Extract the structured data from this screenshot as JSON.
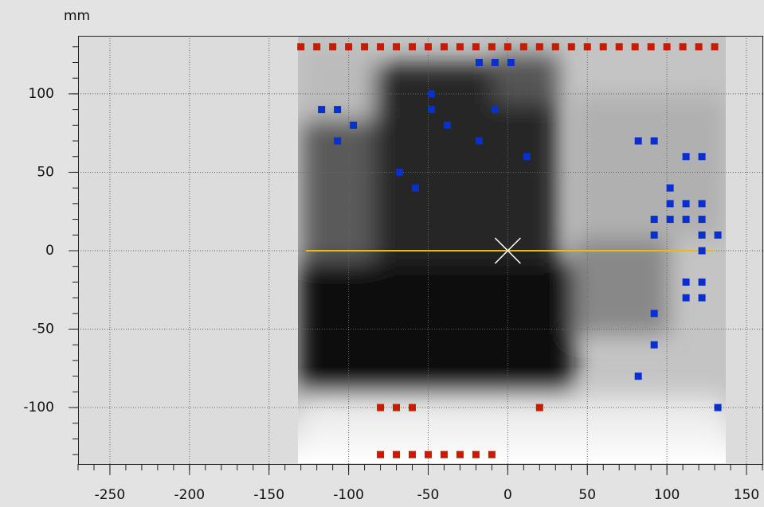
{
  "chart_data": {
    "type": "scatter",
    "unit_label": "mm",
    "xlim": [
      -270,
      161
    ],
    "ylim": [
      -136,
      137
    ],
    "xticks": [
      -250,
      -200,
      -150,
      -100,
      -50,
      0,
      50,
      100,
      150
    ],
    "yticks": [
      -100,
      -50,
      0,
      50,
      100
    ],
    "minor_tick_step": 10,
    "grid": true,
    "series": [
      {
        "color": "#cc1a00",
        "x": [
          -130,
          -120,
          -110,
          -100,
          -90,
          -80,
          -70,
          -60,
          -50,
          -40,
          -30,
          -20,
          -10,
          0,
          10,
          20,
          30,
          40,
          50,
          60,
          70,
          80,
          90,
          100,
          110,
          120,
          130,
          -80,
          -70,
          -60,
          -50,
          -40,
          -30,
          -20,
          -10,
          -80,
          -70,
          -60,
          20
        ],
        "values": [
          130,
          130,
          130,
          130,
          130,
          130,
          130,
          130,
          130,
          130,
          130,
          130,
          130,
          130,
          130,
          130,
          130,
          130,
          130,
          130,
          130,
          130,
          130,
          130,
          130,
          130,
          130,
          -130,
          -130,
          -130,
          -130,
          -130,
          -130,
          -130,
          -130,
          -100,
          -100,
          -100,
          -100
        ]
      },
      {
        "color": "#0a2fd0",
        "x": [
          -18,
          -8,
          2,
          -48,
          -117,
          -107,
          -48,
          -8,
          -97,
          -38,
          -107,
          -18,
          82,
          92,
          12,
          112,
          122,
          -68,
          -58,
          102,
          102,
          112,
          122,
          92,
          102,
          112,
          122,
          92,
          122,
          132,
          122,
          112,
          122,
          112,
          122,
          92,
          92,
          82,
          132
        ],
        "values": [
          120,
          120,
          120,
          100,
          90,
          90,
          90,
          90,
          80,
          80,
          70,
          70,
          70,
          70,
          60,
          60,
          60,
          50,
          40,
          40,
          30,
          30,
          30,
          20,
          20,
          20,
          20,
          10,
          10,
          10,
          0,
          -20,
          -20,
          -30,
          -30,
          -40,
          -60,
          -80,
          -100
        ]
      }
    ],
    "ref_line": {
      "y": 0,
      "x": [
        -127,
        130
      ],
      "color": "#e8b820"
    },
    "crosshair": {
      "x": 0,
      "y": 0,
      "color": "#ffffff"
    }
  }
}
